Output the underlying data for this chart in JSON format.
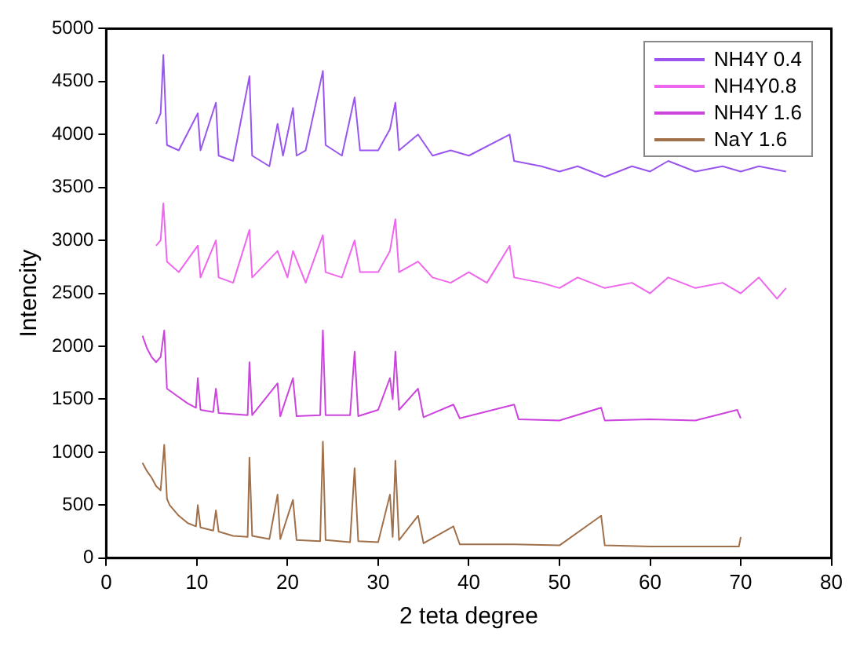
{
  "chart_data": {
    "type": "line",
    "xlabel": "2 teta degree",
    "ylabel": "Intencity",
    "xlim": [
      0,
      80
    ],
    "xticks": [
      0,
      10,
      20,
      30,
      40,
      50,
      60,
      70,
      80
    ],
    "ylim": [
      0,
      5000
    ],
    "yticks": [
      0,
      500,
      1000,
      1500,
      2000,
      2500,
      3000,
      3500,
      4000,
      4500,
      5000
    ],
    "grid": false,
    "legend": "top right",
    "marker": "none",
    "line_style": "solid",
    "series": [
      {
        "name": "NH4Y 0.4",
        "color": "#9955ee",
        "x": [
          5.5,
          6,
          6.3,
          6.7,
          8,
          10.1,
          10.4,
          12.1,
          12.4,
          14,
          15.8,
          16.1,
          18,
          18.9,
          19.5,
          20.6,
          21,
          22,
          23.9,
          24.2,
          26,
          27.4,
          28,
          30,
          31.3,
          31.9,
          32.3,
          34.4,
          36,
          38,
          40,
          44.5,
          45,
          48,
          50,
          52,
          55,
          58,
          60,
          62,
          65,
          68,
          70,
          72,
          75
        ],
        "values": [
          4100,
          4200,
          4750,
          3900,
          3850,
          4200,
          3850,
          4300,
          3800,
          3750,
          4550,
          3800,
          3700,
          4100,
          3800,
          4250,
          3800,
          3850,
          4600,
          3900,
          3800,
          4350,
          3850,
          3850,
          4050,
          4300,
          3850,
          4000,
          3800,
          3850,
          3800,
          4000,
          3750,
          3700,
          3650,
          3700,
          3600,
          3700,
          3650,
          3750,
          3650,
          3700,
          3650,
          3700,
          3650
        ]
      },
      {
        "name": "NH4Y0.8",
        "color": "#ee66ee",
        "x": [
          5.5,
          6,
          6.3,
          6.7,
          8,
          10.1,
          10.4,
          12.1,
          12.4,
          14,
          15.8,
          16.1,
          18.9,
          20,
          20.6,
          22,
          23.9,
          24.2,
          26,
          27.4,
          28,
          30,
          31.3,
          31.9,
          32.3,
          34.4,
          36,
          38,
          40,
          42,
          44.5,
          45,
          48,
          50,
          52,
          55,
          58,
          60,
          62,
          65,
          68,
          70,
          72,
          74,
          75
        ],
        "values": [
          2950,
          3000,
          3350,
          2800,
          2700,
          2950,
          2650,
          3000,
          2650,
          2600,
          3100,
          2650,
          2900,
          2650,
          2900,
          2600,
          3050,
          2700,
          2650,
          3000,
          2700,
          2700,
          2900,
          3200,
          2700,
          2800,
          2650,
          2600,
          2700,
          2600,
          2950,
          2650,
          2600,
          2550,
          2650,
          2550,
          2600,
          2500,
          2650,
          2550,
          2600,
          2500,
          2650,
          2450,
          2550
        ]
      },
      {
        "name": "NH4Y 1.6",
        "color": "#cc44dd",
        "x": [
          4,
          4.5,
          5,
          5.5,
          6,
          6.4,
          6.7,
          8,
          9,
          9.9,
          10.1,
          10.4,
          11.8,
          12.1,
          12.4,
          15.6,
          15.8,
          16.1,
          18.9,
          19.2,
          20.6,
          21,
          23.6,
          23.9,
          24.2,
          26.9,
          27.4,
          27.8,
          30,
          31.3,
          31.6,
          31.9,
          32.3,
          34.4,
          35,
          38.3,
          39,
          45,
          45.5,
          50,
          54.6,
          55,
          60,
          65,
          69.6,
          70
        ],
        "values": [
          2100,
          1980,
          1900,
          1850,
          1900,
          2150,
          1600,
          1520,
          1460,
          1420,
          1700,
          1400,
          1380,
          1600,
          1370,
          1350,
          1850,
          1350,
          1650,
          1340,
          1700,
          1340,
          1350,
          2150,
          1350,
          1350,
          1950,
          1340,
          1400,
          1700,
          1500,
          1950,
          1400,
          1600,
          1330,
          1450,
          1320,
          1450,
          1310,
          1300,
          1420,
          1300,
          1310,
          1300,
          1400,
          1320
        ]
      },
      {
        "name": "NaY 1.6",
        "color": "#a0704a",
        "x": [
          4,
          4.5,
          5,
          5.5,
          6,
          6.4,
          6.7,
          7,
          8,
          9,
          9.9,
          10.1,
          10.4,
          11.8,
          12.1,
          12.4,
          14,
          15.6,
          15.8,
          16.1,
          18,
          18.9,
          19.2,
          20.6,
          21,
          23.6,
          23.9,
          24.2,
          26.9,
          27.4,
          27.8,
          30,
          31.3,
          31.6,
          31.9,
          32.3,
          34.4,
          35,
          38.3,
          39,
          45,
          50,
          54.6,
          55,
          60,
          65,
          69.8,
          70
        ],
        "values": [
          900,
          820,
          760,
          680,
          640,
          1070,
          560,
          500,
          400,
          330,
          300,
          500,
          290,
          260,
          450,
          250,
          210,
          200,
          950,
          210,
          180,
          600,
          180,
          550,
          170,
          160,
          1100,
          170,
          150,
          850,
          160,
          150,
          600,
          200,
          920,
          170,
          400,
          140,
          300,
          130,
          130,
          120,
          400,
          120,
          110,
          110,
          110,
          200
        ]
      }
    ]
  }
}
